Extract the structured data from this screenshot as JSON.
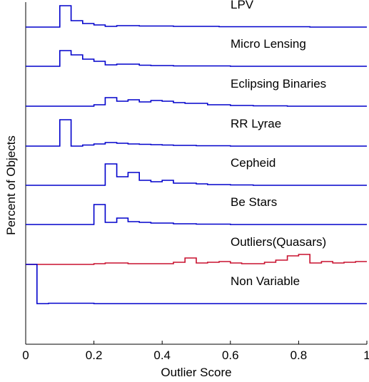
{
  "chart_data": {
    "type": "line",
    "xlabel": "Outlier Score",
    "ylabel": "Percent of Objects",
    "xlim": [
      0,
      1
    ],
    "xticks": [
      "0",
      "0.2",
      "0.4",
      "0.6",
      "0.8",
      "1"
    ],
    "grid": false,
    "bin_edges": [
      0,
      0.033,
      0.067,
      0.1,
      0.133,
      0.167,
      0.2,
      0.233,
      0.267,
      0.3,
      0.333,
      0.367,
      0.4,
      0.433,
      0.467,
      0.5,
      0.533,
      0.567,
      0.6,
      0.633,
      0.667,
      0.7,
      0.733,
      0.767,
      0.8,
      0.833,
      0.867,
      0.9,
      0.933,
      0.967,
      1.0
    ],
    "series": [
      {
        "name": "LPV",
        "color": "#0000cc",
        "values": [
          0,
          0,
          0,
          30,
          9,
          5,
          3,
          1,
          2,
          2,
          1.5,
          1.5,
          1.5,
          1,
          1,
          1,
          1,
          0.5,
          0.5,
          0.5,
          0.5,
          0.5,
          0.5,
          0.5,
          0.5,
          0,
          0,
          0,
          0,
          0
        ]
      },
      {
        "name": "Micro Lensing",
        "color": "#0000cc",
        "values": [
          0,
          0,
          0,
          22,
          16,
          10,
          7,
          2,
          3,
          3,
          1.5,
          1,
          1,
          0.5,
          0.5,
          0.5,
          0.5,
          0.5,
          0,
          0,
          0,
          0,
          0,
          0,
          0,
          0,
          0,
          0,
          0,
          0
        ]
      },
      {
        "name": "Eclipsing Binaries",
        "color": "#0000cc",
        "values": [
          0,
          0,
          0,
          0,
          0,
          0,
          2,
          12,
          7,
          9,
          6,
          8,
          7,
          5,
          4,
          4,
          2,
          2,
          1,
          1,
          0.5,
          0.5,
          0.5,
          0,
          0,
          0,
          0,
          0,
          0,
          0
        ]
      },
      {
        "name": "RR Lyrae",
        "color": "#0000cc",
        "values": [
          0,
          0,
          0,
          37,
          0,
          1.5,
          3,
          5,
          4,
          3,
          2.5,
          2,
          1.5,
          1,
          1,
          0.5,
          0.5,
          0.5,
          0,
          0,
          0,
          0,
          0,
          0,
          0,
          0,
          0,
          0,
          0,
          0
        ]
      },
      {
        "name": "Cepheid",
        "color": "#0000cc",
        "values": [
          0,
          0,
          0,
          0,
          0,
          0,
          0,
          30,
          12,
          18,
          7,
          5,
          7,
          3,
          3,
          2,
          1,
          1,
          0.5,
          0.5,
          0,
          0,
          0,
          0,
          0,
          0,
          0,
          0,
          0,
          0
        ]
      },
      {
        "name": "Be Stars",
        "color": "#0000cc",
        "values": [
          0,
          0,
          0,
          0,
          0,
          0,
          28,
          3,
          9,
          4,
          3,
          2,
          2,
          1,
          1,
          0.5,
          0.5,
          0.5,
          0,
          0,
          0,
          0,
          0,
          0,
          0,
          0,
          0,
          0,
          0,
          0
        ]
      },
      {
        "name": "Outliers(Quasars)",
        "color": "#c8102e",
        "values": [
          0,
          0,
          0,
          0,
          0,
          0,
          1,
          2,
          2,
          1,
          1,
          1,
          1,
          3,
          9,
          2,
          3,
          4,
          2,
          1,
          1,
          3,
          6,
          12,
          14,
          2,
          4,
          2,
          3,
          4
        ]
      },
      {
        "name": "Non Variable",
        "color": "#0000cc",
        "values": [
          55,
          0,
          0.5,
          0.5,
          0.5,
          0.5,
          0,
          0,
          0,
          0,
          0,
          0,
          0,
          0,
          0,
          0,
          0,
          0,
          0,
          0,
          0,
          0,
          0,
          0,
          0,
          0,
          0,
          0,
          0,
          0
        ]
      }
    ]
  }
}
